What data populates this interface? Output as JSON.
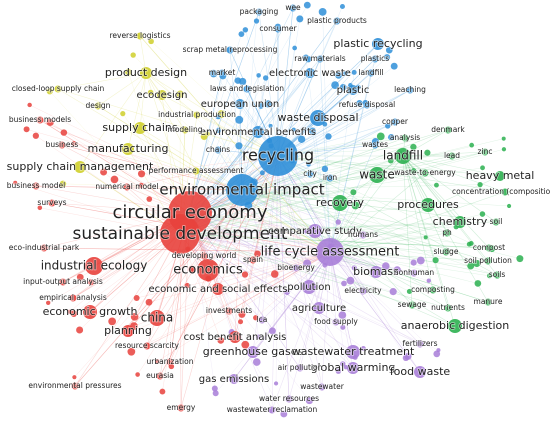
{
  "nodes": [
    {
      "label": "packaging",
      "color": "#2f8fd8"
    },
    {
      "label": "wee",
      "color": "#2f8fd8"
    },
    {
      "label": "plastic products",
      "color": "#2f8fd8"
    },
    {
      "label": "consumer",
      "color": "#2f8fd8"
    },
    {
      "label": "plastic recycling",
      "color": "#2f8fd8"
    },
    {
      "label": "raw materials",
      "color": "#2f8fd8"
    },
    {
      "label": "plastics",
      "color": "#2f8fd8"
    },
    {
      "label": "electronic waste",
      "color": "#2f8fd8"
    },
    {
      "label": "landfill",
      "color": "#2f8fd8"
    },
    {
      "label": "plastic",
      "color": "#2f8fd8"
    },
    {
      "label": "laws and legislation",
      "color": "#2f8fd8"
    },
    {
      "label": "european union",
      "color": "#2f8fd8"
    },
    {
      "label": "refuse disposal",
      "color": "#2f8fd8"
    },
    {
      "label": "waste disposal",
      "color": "#2f8fd8"
    },
    {
      "label": "environmental benefits",
      "color": "#2f8fd8"
    },
    {
      "label": "recycling",
      "color": "#2f8fd8"
    },
    {
      "label": "chains",
      "color": "#2f8fd8"
    },
    {
      "label": "city",
      "color": "#2f8fd8"
    },
    {
      "label": "iron",
      "color": "#2f8fd8"
    },
    {
      "label": "wastes",
      "color": "#2f8fd8"
    },
    {
      "label": "market",
      "color": "#2f8fd8"
    },
    {
      "label": "scrap metal reprocessing",
      "color": "#2f8fd8"
    },
    {
      "label": "leaching",
      "color": "#2f8fd8"
    },
    {
      "label": "copper",
      "color": "#2f8fd8"
    },
    {
      "label": "environmental impact",
      "color": "#2f8fd8"
    },
    {
      "label": "reverse logistics",
      "color": "#cfcf2a"
    },
    {
      "label": "product design",
      "color": "#cfcf2a"
    },
    {
      "label": "ecodesign",
      "color": "#cfcf2a"
    },
    {
      "label": "industrial production",
      "color": "#cfcf2a"
    },
    {
      "label": "design",
      "color": "#cfcf2a"
    },
    {
      "label": "supply chains",
      "color": "#cfcf2a"
    },
    {
      "label": "modeling",
      "color": "#cfcf2a"
    },
    {
      "label": "manufacturing",
      "color": "#cfcf2a"
    },
    {
      "label": "supply chain management",
      "color": "#cfcf2a"
    },
    {
      "label": "performance assessment",
      "color": "#cfcf2a"
    },
    {
      "label": "closed-loop supply chain",
      "color": "#cfcf2a"
    },
    {
      "label": "business models",
      "color": "#e8413c"
    },
    {
      "label": "business",
      "color": "#e8413c"
    },
    {
      "label": "business model",
      "color": "#e8413c"
    },
    {
      "label": "surveys",
      "color": "#e8413c"
    },
    {
      "label": "numerical model",
      "color": "#e8413c"
    },
    {
      "label": "circular economy",
      "color": "#e8413c"
    },
    {
      "label": "sustainable development",
      "color": "#e8413c"
    },
    {
      "label": "eco-industrial park",
      "color": "#e8413c"
    },
    {
      "label": "industrial ecology",
      "color": "#e8413c"
    },
    {
      "label": "developing world",
      "color": "#e8413c"
    },
    {
      "label": "economics",
      "color": "#e8413c"
    },
    {
      "label": "input-output analysis",
      "color": "#e8413c"
    },
    {
      "label": "empirical analysis",
      "color": "#e8413c"
    },
    {
      "label": "economic growth",
      "color": "#e8413c"
    },
    {
      "label": "economic and social effects",
      "color": "#e8413c"
    },
    {
      "label": "china",
      "color": "#e8413c"
    },
    {
      "label": "planning",
      "color": "#e8413c"
    },
    {
      "label": "investments",
      "color": "#e8413c"
    },
    {
      "label": "resource scarcity",
      "color": "#e8413c"
    },
    {
      "label": "urbanization",
      "color": "#e8413c"
    },
    {
      "label": "eurasia",
      "color": "#e8413c"
    },
    {
      "label": "environmental pressures",
      "color": "#e8413c"
    },
    {
      "label": "emergy",
      "color": "#e8413c"
    },
    {
      "label": "cost benefit analysis",
      "color": "#e8413c"
    },
    {
      "label": "spain",
      "color": "#e8413c"
    },
    {
      "label": "comparative study",
      "color": "#a87ed8"
    },
    {
      "label": "life cycle assessment",
      "color": "#a87ed8"
    },
    {
      "label": "bioenergy",
      "color": "#a87ed8"
    },
    {
      "label": "pollution",
      "color": "#a87ed8"
    },
    {
      "label": "electricity",
      "color": "#a87ed8"
    },
    {
      "label": "agriculture",
      "color": "#a87ed8"
    },
    {
      "label": "lca",
      "color": "#a87ed8"
    },
    {
      "label": "food supply",
      "color": "#a87ed8"
    },
    {
      "label": "greenhouse gases",
      "color": "#a87ed8"
    },
    {
      "label": "wastewater treatment",
      "color": "#a87ed8"
    },
    {
      "label": "global warming",
      "color": "#a87ed8"
    },
    {
      "label": "gas emissions",
      "color": "#a87ed8"
    },
    {
      "label": "air pollution",
      "color": "#a87ed8"
    },
    {
      "label": "wastewater",
      "color": "#a87ed8"
    },
    {
      "label": "water resources",
      "color": "#a87ed8"
    },
    {
      "label": "wastewater reclamation",
      "color": "#a87ed8"
    },
    {
      "label": "food waste",
      "color": "#a87ed8"
    },
    {
      "label": "fertilizers",
      "color": "#a87ed8"
    },
    {
      "label": "biomass",
      "color": "#a87ed8"
    },
    {
      "label": "nonhuman",
      "color": "#a87ed8"
    },
    {
      "label": "humans",
      "color": "#a87ed8"
    },
    {
      "label": "landfill",
      "color": "#2cb050"
    },
    {
      "label": "waste",
      "color": "#2cb050"
    },
    {
      "label": "recovery",
      "color": "#2cb050"
    },
    {
      "label": "procedures",
      "color": "#2cb050"
    },
    {
      "label": "chemistry",
      "color": "#2cb050"
    },
    {
      "label": "ph",
      "color": "#2cb050"
    },
    {
      "label": "sludge",
      "color": "#2cb050"
    },
    {
      "label": "composting",
      "color": "#2cb050"
    },
    {
      "label": "sewage",
      "color": "#2cb050"
    },
    {
      "label": "nutrients",
      "color": "#2cb050"
    },
    {
      "label": "anaerobic digestion",
      "color": "#2cb050"
    },
    {
      "label": "manure",
      "color": "#2cb050"
    },
    {
      "label": "compost",
      "color": "#2cb050"
    },
    {
      "label": "soil pollution",
      "color": "#2cb050"
    },
    {
      "label": "soils",
      "color": "#2cb050"
    },
    {
      "label": "soil",
      "color": "#2cb050"
    },
    {
      "label": "heavy metal",
      "color": "#2cb050"
    },
    {
      "label": "concentration (composition)",
      "color": "#2cb050"
    },
    {
      "label": "zinc",
      "color": "#2cb050"
    },
    {
      "label": "lead",
      "color": "#2cb050"
    },
    {
      "label": "denmark",
      "color": "#2cb050"
    },
    {
      "label": "analysis",
      "color": "#2cb050"
    },
    {
      "label": "waste-to-energy",
      "color": "#2cb050"
    }
  ]
}
